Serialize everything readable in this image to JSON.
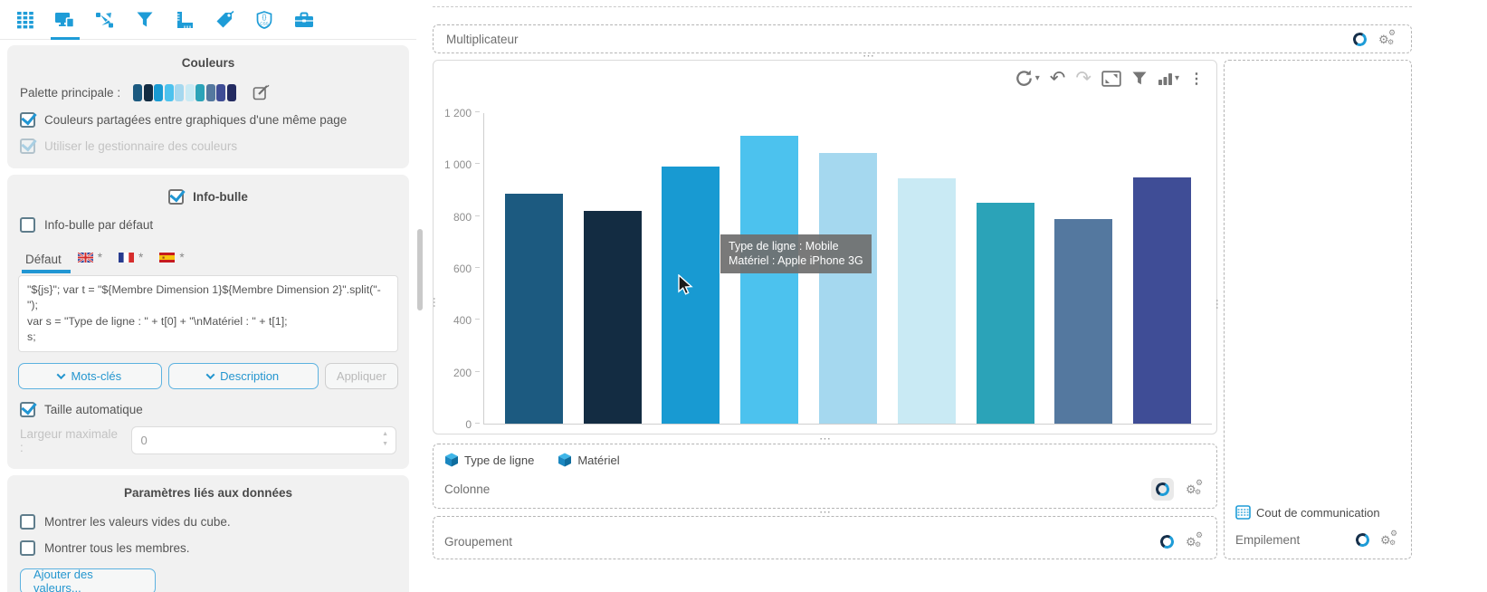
{
  "accent": "#1e9cd7",
  "glyphs": {
    "caret": "▾",
    "undo": "↶",
    "redo": "↷",
    "kebab": "⋮",
    "hdots": "⋯",
    "vdots": "⋯",
    "gear": "⚙",
    "asterisk": "*",
    "spin_up": "▲",
    "spin_down": "▼"
  },
  "toolbar": {
    "icons": [
      "table-grid",
      "screens",
      "transfer",
      "filter",
      "ruler",
      "tag",
      "css-shield",
      "toolbox"
    ],
    "active": "screens"
  },
  "colors_section": {
    "title": "Couleurs",
    "palette_label": "Palette principale :",
    "palette": [
      "#1c5a80",
      "#132c42",
      "#189ad2",
      "#4cc2ee",
      "#a5d8ef",
      "#c9eaf4",
      "#2ba3b8",
      "#54789f",
      "#3f4d96",
      "#232b61"
    ],
    "checkbox_shared": {
      "label": "Couleurs partagées entre graphiques d'une même page",
      "checked": true
    },
    "checkbox_manager": {
      "label": "Utiliser le gestionnaire des couleurs",
      "checked": true,
      "disabled": true
    }
  },
  "tooltip_section": {
    "title": "Info-bulle",
    "title_checked": true,
    "default_checkbox": {
      "label": "Info-bulle par défaut",
      "checked": false
    },
    "tabs": {
      "default_label": "Défaut",
      "locales": [
        "en",
        "fr",
        "es"
      ]
    },
    "code": "\"${js}\"; var t = \"${Membre Dimension 1}${Membre Dimension 2}\".split(\"-\");\nvar s = \"Type de ligne : \" + t[0] + \"\\nMatériel : \" + t[1];\ns;",
    "buttons": {
      "keywords": "Mots-clés",
      "description": "Description",
      "apply": "Appliquer",
      "apply_enabled": false
    },
    "auto_size": {
      "label": "Taille automatique",
      "checked": true
    },
    "max_width": {
      "label": "Largeur maximale :",
      "value": "0"
    }
  },
  "data_section": {
    "title": "Paramètres liés aux données",
    "checkbox_empty": {
      "label": "Montrer les valeurs vides du cube.",
      "checked": false
    },
    "checkbox_all": {
      "label": "Montrer tous les membres.",
      "checked": false
    },
    "add_button": "Ajouter des valeurs..."
  },
  "multiplicateur": {
    "label": "Multiplicateur"
  },
  "chart_data": {
    "type": "bar",
    "title": "",
    "xlabel": "",
    "ylabel": "",
    "ylim": [
      0,
      1200
    ],
    "yticks": [
      0,
      200,
      400,
      600,
      800,
      1000,
      1200
    ],
    "ytick_labels": [
      "0",
      "200",
      "400",
      "600",
      "800",
      "1 000",
      "1 200"
    ],
    "grid": false,
    "values": [
      890,
      823,
      993,
      1113,
      1046,
      948,
      855,
      790,
      952
    ],
    "colors": [
      "#1c5a80",
      "#132c42",
      "#189ad2",
      "#4cc2ee",
      "#a5d8ef",
      "#c9eaf4",
      "#2ba3b8",
      "#54789f",
      "#3f4d96"
    ],
    "tooltip": {
      "lines": [
        "Type de ligne : Mobile",
        "Matériel : Apple iPhone 3G"
      ]
    },
    "toolbar_icons": [
      "refresh",
      "undo",
      "redo",
      "fullscreen",
      "filter",
      "chart-type",
      "more"
    ]
  },
  "colonne": {
    "label": "Colonne",
    "chips": [
      {
        "label": "Type de ligne"
      },
      {
        "label": "Matériel"
      }
    ]
  },
  "groupement": {
    "label": "Groupement"
  },
  "empilement": {
    "label": "Empilement",
    "chip_label": "Cout de communication"
  }
}
